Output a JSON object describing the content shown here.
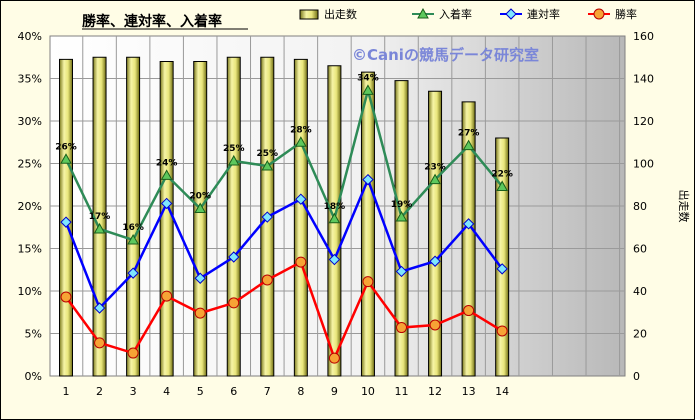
{
  "chart_data": {
    "type": "bar+line",
    "title": "勝率、連対率、入着率",
    "watermark": "©Caniの競馬データ研究室",
    "categories": [
      "1",
      "2",
      "3",
      "4",
      "5",
      "6",
      "7",
      "8",
      "9",
      "10",
      "11",
      "12",
      "13",
      "14"
    ],
    "bar_series": {
      "name": "出走数",
      "axis": "right",
      "values": [
        149,
        150,
        150,
        148,
        148,
        150,
        150,
        149,
        146,
        143,
        139,
        134,
        129,
        112
      ],
      "color": "#e8e67a"
    },
    "line_series": [
      {
        "name": "入着率",
        "axis": "left",
        "color": "#2e8b57",
        "marker": "triangle",
        "values": [
          25.5,
          17.3,
          16.0,
          23.6,
          19.7,
          25.3,
          24.7,
          27.5,
          18.5,
          33.6,
          18.7,
          23.1,
          27.1,
          22.3
        ],
        "labels": [
          "26%",
          "17%",
          "16%",
          "24%",
          "20%",
          "25%",
          "25%",
          "28%",
          "18%",
          "34%",
          "19%",
          "23%",
          "27%",
          "22%"
        ]
      },
      {
        "name": "連対率",
        "axis": "left",
        "color": "#0000ff",
        "marker": "diamond",
        "values": [
          18.1,
          8.0,
          12.1,
          20.3,
          11.5,
          14.0,
          18.7,
          20.8,
          13.7,
          23.1,
          12.3,
          13.5,
          17.9,
          12.6
        ]
      },
      {
        "name": "勝率",
        "axis": "left",
        "color": "#ff0000",
        "marker": "circle",
        "values": [
          9.3,
          3.9,
          2.7,
          9.4,
          7.4,
          8.6,
          11.3,
          13.4,
          2.1,
          11.1,
          5.7,
          6.0,
          7.7,
          5.3
        ]
      }
    ],
    "y_left": {
      "min": 0,
      "max": 40,
      "step": 5,
      "ticks": [
        "0%",
        "5%",
        "10%",
        "15%",
        "20%",
        "25%",
        "30%",
        "35%",
        "40%"
      ]
    },
    "y_right": {
      "min": 0,
      "max": 160,
      "step": 20,
      "ticks": [
        "0",
        "20",
        "40",
        "60",
        "80",
        "100",
        "120",
        "140",
        "160"
      ],
      "label": "出走数"
    },
    "grid": true,
    "legend_position": "top"
  }
}
